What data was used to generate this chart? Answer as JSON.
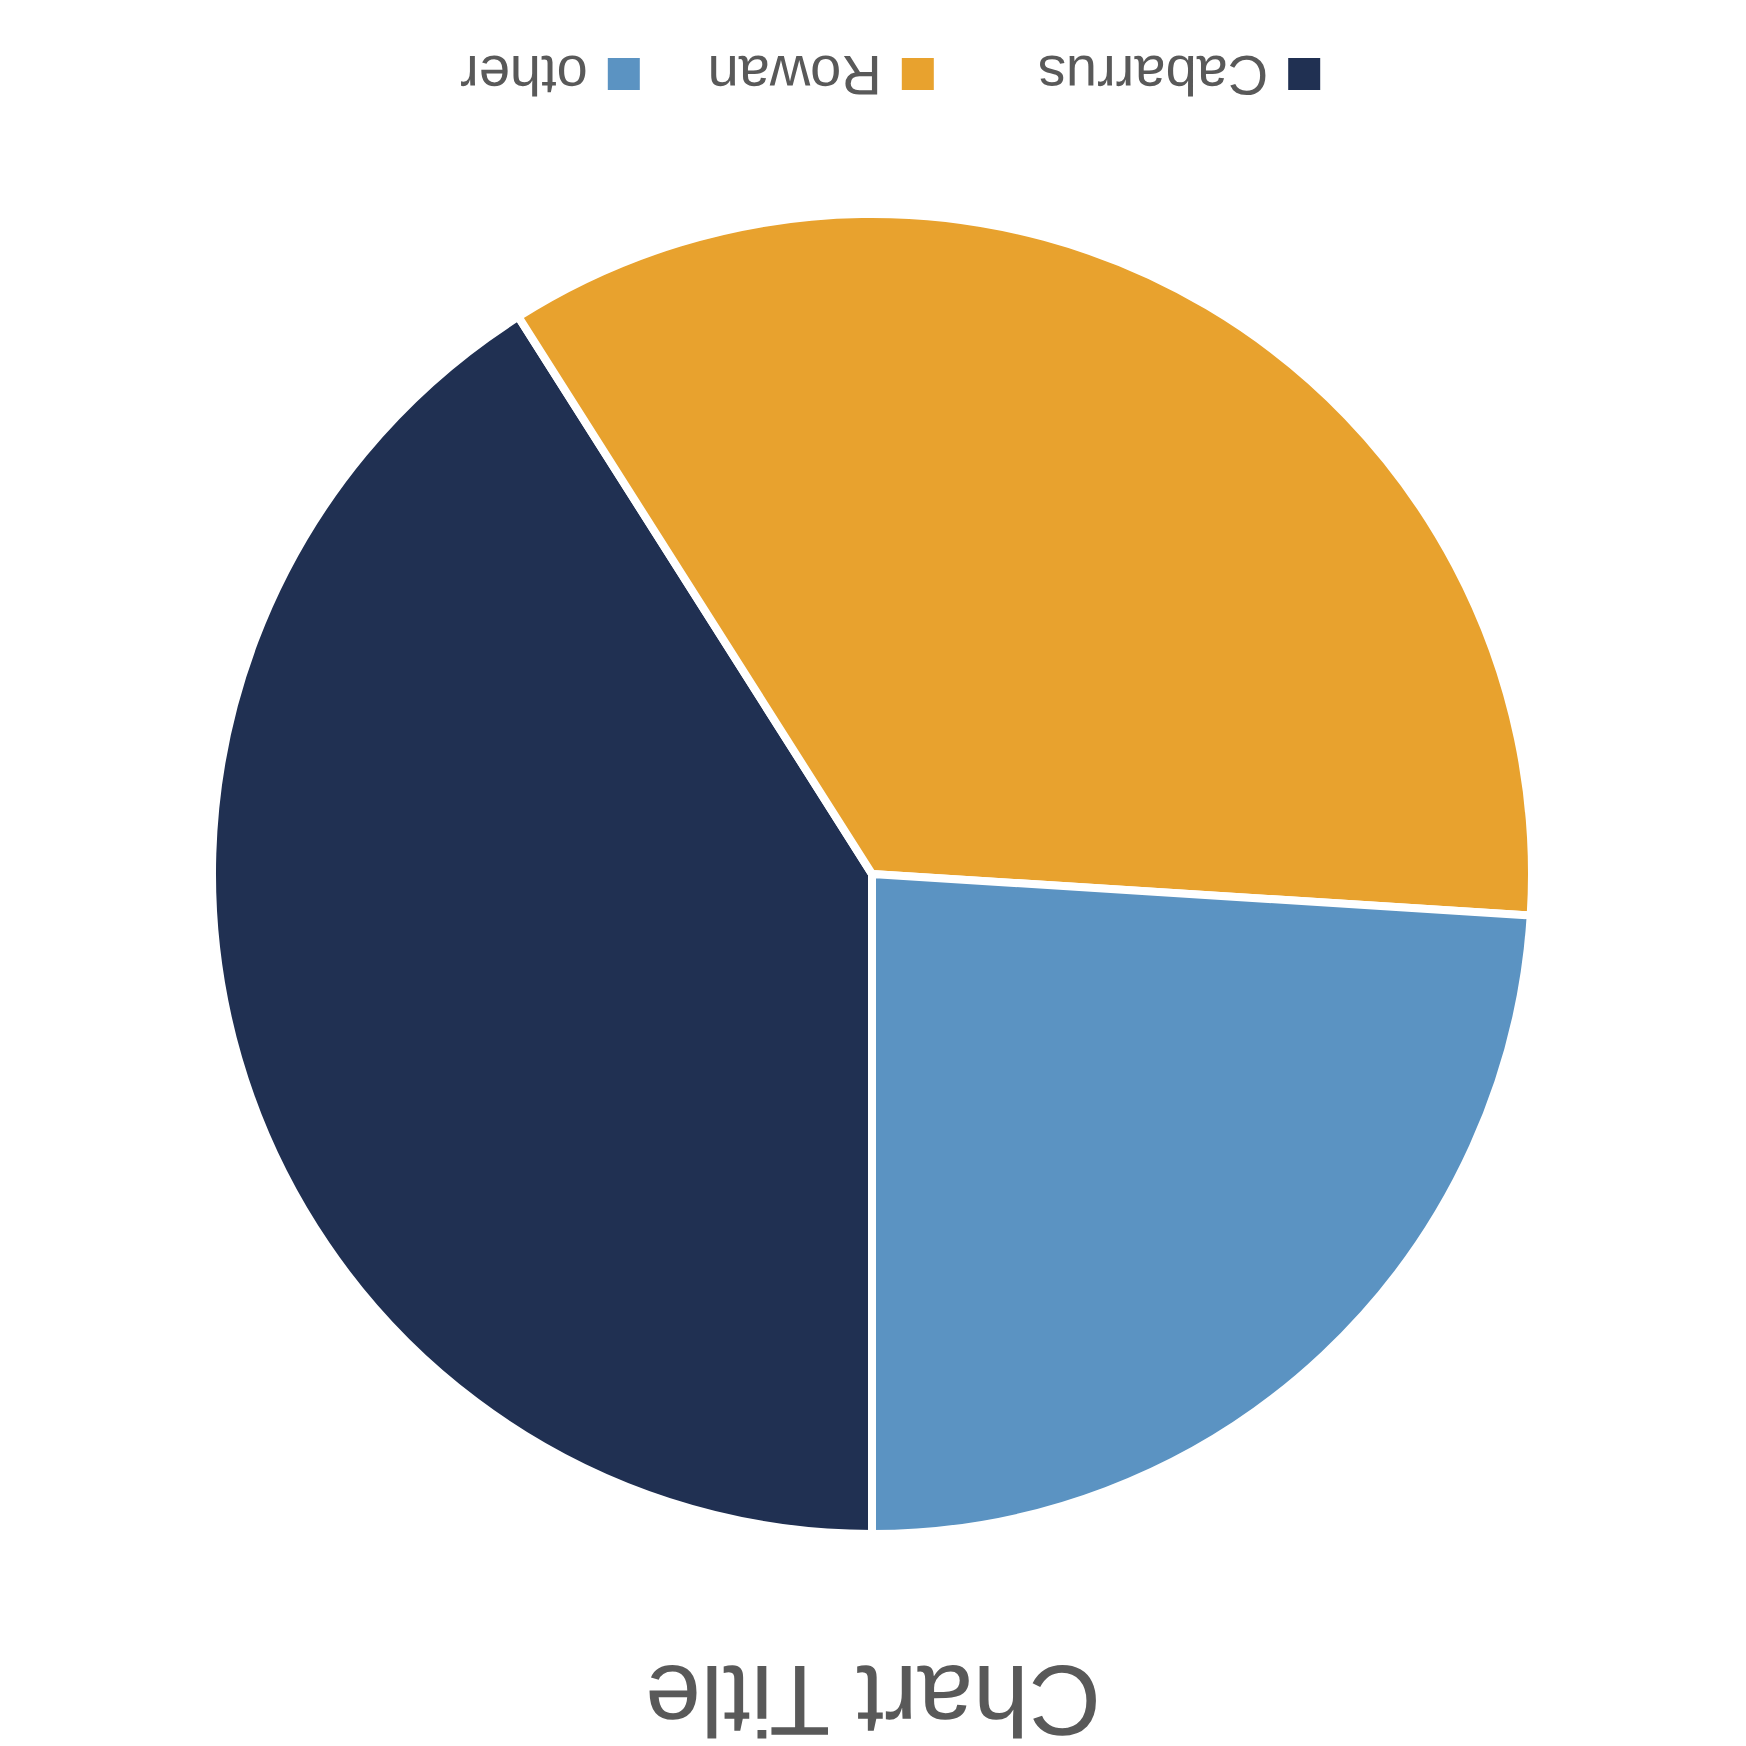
{
  "chart_data": {
    "type": "pie",
    "title": "Chart Title",
    "categories": [
      "Cabarrus",
      "Rowan",
      "other"
    ],
    "values": [
      41,
      35,
      24
    ],
    "colors": [
      "#203052",
      "#e8a22e",
      "#5b93c2"
    ],
    "legend": "top"
  }
}
